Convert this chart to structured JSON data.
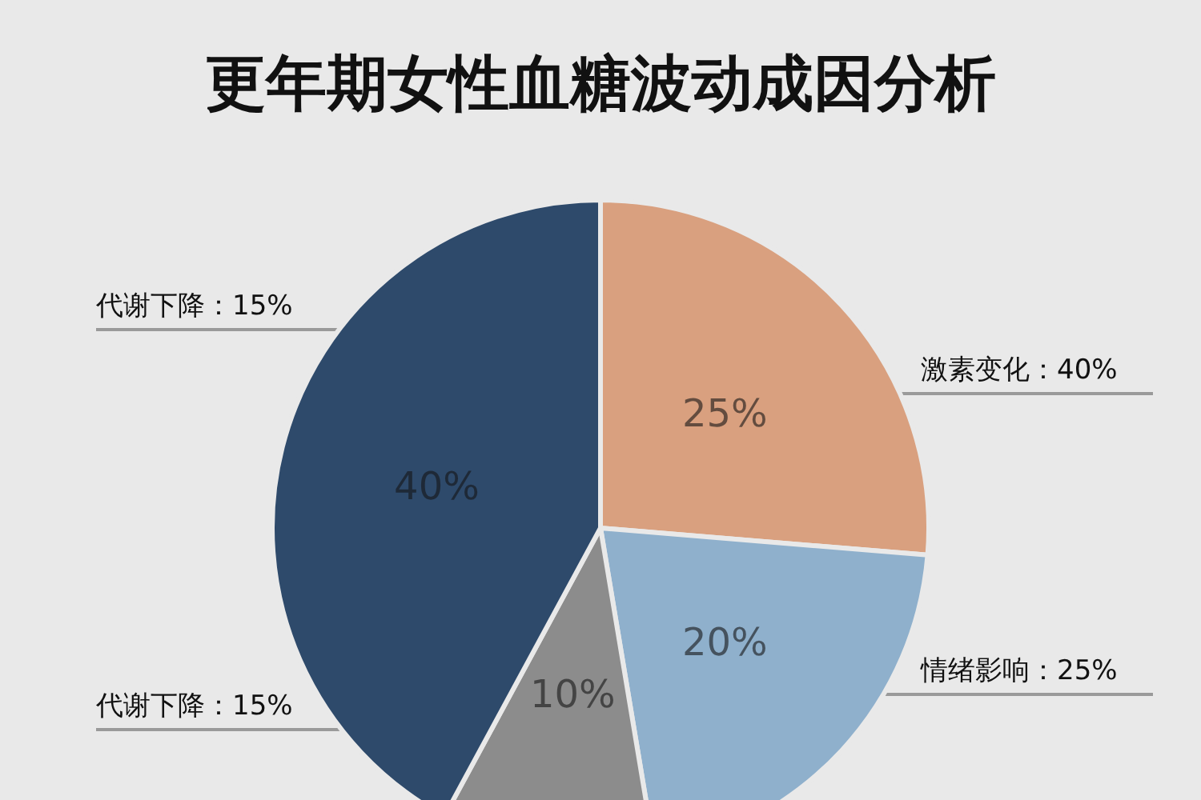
{
  "chart_data": {
    "type": "pie",
    "title": "更年期女性血糖波动成因分析",
    "categories": [
      null,
      null,
      null,
      null
    ],
    "values": [
      25,
      20,
      10,
      40
    ],
    "colors": [
      "#d9a07f",
      "#8fb0cc",
      "#8c8c8c",
      "#2e4a6b"
    ],
    "value_labels": [
      "25%",
      "20%",
      "10%",
      "40%"
    ],
    "annotations": [
      "代谢下降：15%",
      "激素变化：40%",
      "情绪影响：25%",
      "代谢下降：15%"
    ]
  }
}
